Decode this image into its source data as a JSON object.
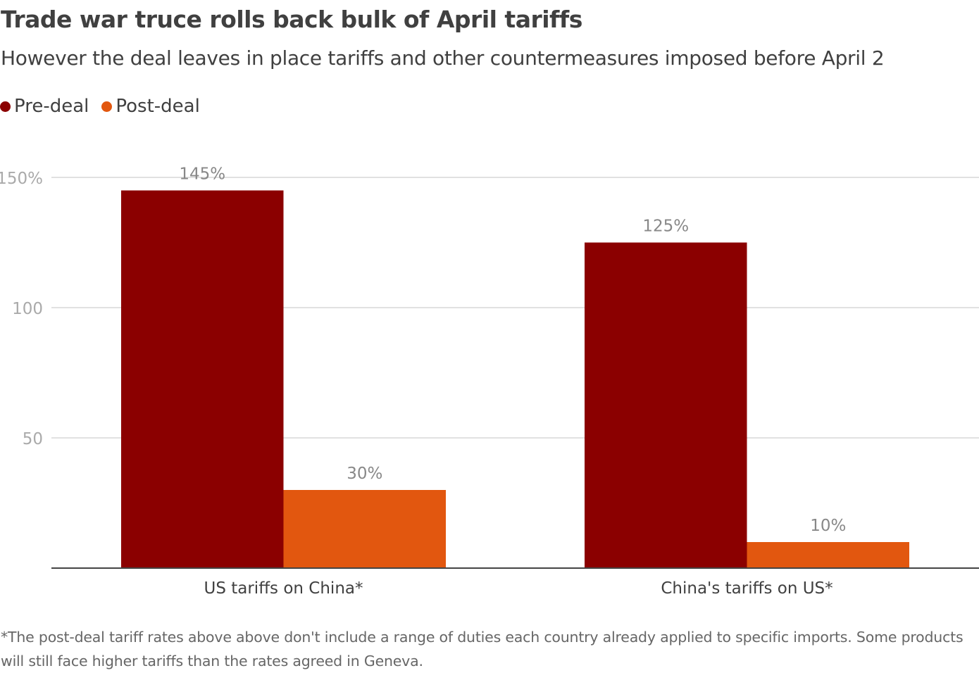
{
  "colors": {
    "pre": "#8b0000",
    "post": "#e2570f"
  },
  "chart_data": {
    "type": "bar",
    "title": "Trade war truce rolls back bulk of April tariffs",
    "subtitle": "However the deal leaves in place tariffs and other countermeasures imposed before April 2",
    "categories": [
      "US tariffs on China*",
      "China's tariffs on US*"
    ],
    "series": [
      {
        "name": "Pre-deal",
        "values": [
          145,
          125
        ],
        "labels": [
          "145%",
          "125%"
        ]
      },
      {
        "name": "Post-deal",
        "values": [
          30,
          10
        ],
        "labels": [
          "30%",
          "10%"
        ]
      }
    ],
    "ylim": [
      0,
      150
    ],
    "yticks": [
      50,
      100,
      150
    ],
    "ytick_labels": [
      "50",
      "100",
      "150%"
    ],
    "grid": true,
    "legend": "top-left",
    "note": "*The post-deal tariff rates above above don't include a range of duties each country already applied to specific imports. Some products will still face higher tariffs than the rates agreed in Geneva."
  }
}
